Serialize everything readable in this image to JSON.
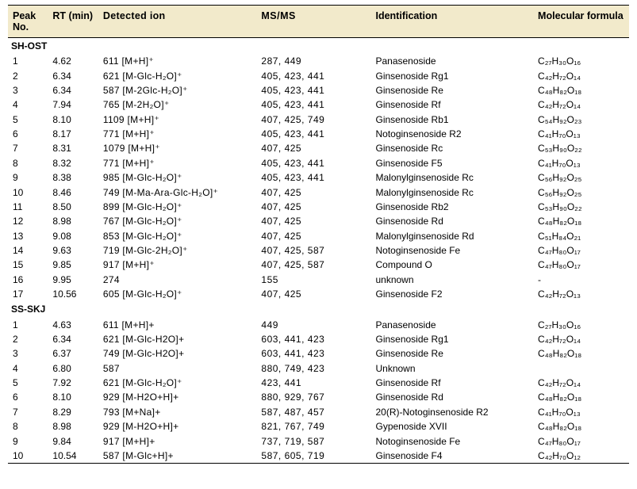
{
  "columns": [
    {
      "key": "peak",
      "label": "Peak No."
    },
    {
      "key": "rt",
      "label": "RT (min)"
    },
    {
      "key": "ion",
      "label": "Detected ion"
    },
    {
      "key": "msms",
      "label": "MS/MS"
    },
    {
      "key": "id",
      "label": "Identification"
    },
    {
      "key": "formula",
      "label": "Molecular formula"
    }
  ],
  "sections": [
    {
      "label": "SH-OST",
      "rows": [
        {
          "peak": "1",
          "rt": "4.62",
          "ion": "611 [M+H]⁺",
          "msms": "287, 449",
          "id": "Panasenoside",
          "formula": "C₂₇H₃₀O₁₆"
        },
        {
          "peak": "2",
          "rt": "6.34",
          "ion": "621 [M-Glc-H₂O]⁺",
          "msms": "405, 423, 441",
          "id": "Ginsenoside Rg1",
          "formula": "C₄₂H₇₂O₁₄"
        },
        {
          "peak": "3",
          "rt": "6.34",
          "ion": "587 [M-2Glc-H₂O]⁺",
          "msms": "405, 423, 441",
          "id": "Ginsenoside Re",
          "formula": "C₄₈H₈₂O₁₈"
        },
        {
          "peak": "4",
          "rt": "7.94",
          "ion": "765 [M-2H₂O]⁺",
          "msms": "405, 423, 441",
          "id": "Ginsenoside Rf",
          "formula": "C₄₂H₇₂O₁₄"
        },
        {
          "peak": "5",
          "rt": "8.10",
          "ion": "1109 [M+H]⁺",
          "msms": "407, 425, 749",
          "id": "Ginsenoside Rb1",
          "formula": "C₅₄H₉₂O₂₃"
        },
        {
          "peak": "6",
          "rt": "8.17",
          "ion": "771 [M+H]⁺",
          "msms": "405, 423, 441",
          "id": "Notoginsenoside R2",
          "formula": "C₄₁H₇₀O₁₃"
        },
        {
          "peak": "7",
          "rt": "8.31",
          "ion": "1079 [M+H]⁺",
          "msms": "407, 425",
          "id": "Ginsenoside Rc",
          "formula": "C₅₃H₉₀O₂₂"
        },
        {
          "peak": "8",
          "rt": "8.32",
          "ion": "771 [M+H]⁺",
          "msms": "405, 423, 441",
          "id": "Ginsenoside F5",
          "formula": "C₄₁H₇₀O₁₃"
        },
        {
          "peak": "9",
          "rt": "8.38",
          "ion": "985 [M-Glc-H₂O]⁺",
          "msms": "405, 423, 441",
          "id": "Malonylginsenoside Rc",
          "formula": "C₅₆H₉₂O₂₅"
        },
        {
          "peak": "10",
          "rt": "8.46",
          "ion": "749 [M-Ma-Ara-Glc-H₂O]⁺",
          "msms": "407, 425",
          "id": "Malonylginsenoside Rc",
          "formula": "C₅₆H₉₂O₂₅"
        },
        {
          "peak": "11",
          "rt": "8.50",
          "ion": "899 [M-Glc-H₂O]⁺",
          "msms": "407, 425",
          "id": "Ginsenoside Rb2",
          "formula": "C₅₃H₉₀O₂₂"
        },
        {
          "peak": "12",
          "rt": "8.98",
          "ion": "767 [M-Glc-H₂O]⁺",
          "msms": "407, 425",
          "id": "Ginsenoside Rd",
          "formula": "C₄₈H₈₂O₁₈"
        },
        {
          "peak": "13",
          "rt": "9.08",
          "ion": "853 [M-Glc-H₂O]⁺",
          "msms": "407, 425",
          "id": "Malonylginsenoside Rd",
          "formula": "C₅₁H₈₄O₂₁"
        },
        {
          "peak": "14",
          "rt": "9.63",
          "ion": "719 [M-Glc-2H₂O]⁺",
          "msms": "407, 425, 587",
          "id": "Notoginsenoside Fe",
          "formula": "C₄₇H₈₀O₁₇"
        },
        {
          "peak": "15",
          "rt": "9.85",
          "ion": "917 [M+H]⁺",
          "msms": "407, 425, 587",
          "id": "Compound O",
          "formula": "C₄₇H₈₀O₁₇"
        },
        {
          "peak": "16",
          "rt": "9.95",
          "ion": "274",
          "msms": "155",
          "id": "unknown",
          "formula": "-"
        },
        {
          "peak": "17",
          "rt": "10.56",
          "ion": "605 [M-Glc-H₂O]⁺",
          "msms": "407, 425",
          "id": "Ginsenoside F2",
          "formula": "C₄₂H₇₂O₁₃"
        }
      ]
    },
    {
      "label": "SS-SKJ",
      "rows": [
        {
          "peak": "1",
          "rt": "4.63",
          "ion": "611 [M+H]+",
          "msms": "449",
          "id": "Panasenoside",
          "formula": "C₂₇H₃₀O₁₆"
        },
        {
          "peak": "2",
          "rt": "6.34",
          "ion": "621 [M-Glc-H2O]+",
          "msms": "603, 441, 423",
          "id": "Ginsenoside Rg1",
          "formula": "C₄₂H₇₂O₁₄"
        },
        {
          "peak": "3",
          "rt": "6.37",
          "ion": "749 [M-Glc-H2O]+",
          "msms": "603, 441, 423",
          "id": "Ginsenoside Re",
          "formula": "C₄₈H₈₂O₁₈"
        },
        {
          "peak": "4",
          "rt": "6.80",
          "ion": "587",
          "msms": "880, 749, 423",
          "id": "Unknown",
          "formula": ""
        },
        {
          "peak": "5",
          "rt": "7.92",
          "ion": "621 [M-Glc-H₂O]⁺",
          "msms": "423, 441",
          "id": "Ginsenoside Rf",
          "formula": "C₄₂H₇₂O₁₄"
        },
        {
          "peak": "6",
          "rt": "8.10",
          "ion": "929 [M-H2O+H]+",
          "msms": "880, 929, 767",
          "id": "Ginsenoside Rd",
          "formula": "C₄₈H₈₂O₁₈"
        },
        {
          "peak": "7",
          "rt": "8.29",
          "ion": "793 [M+Na]+",
          "msms": "587, 487, 457",
          "id": "20(R)-Notoginsenoside R2",
          "formula": "C₄₁H₇₀O₁₃"
        },
        {
          "peak": "8",
          "rt": "8.98",
          "ion": "929 [M-H2O+H]+",
          "msms": "821, 767, 749",
          "id": "Gypenoside XVII",
          "formula": "C₄₈H₈₂O₁₈"
        },
        {
          "peak": "9",
          "rt": "9.84",
          "ion": "917 [M+H]+",
          "msms": "737, 719, 587",
          "id": "Notoginsenoside Fe",
          "formula": "C₄₇H₈₀O₁₇"
        },
        {
          "peak": "10",
          "rt": "10.54",
          "ion": "587 [M-Glc+H]+",
          "msms": "587, 605, 719",
          "id": "Ginsenoside F4",
          "formula": "C₄₂H₇₀O₁₂"
        }
      ]
    }
  ]
}
